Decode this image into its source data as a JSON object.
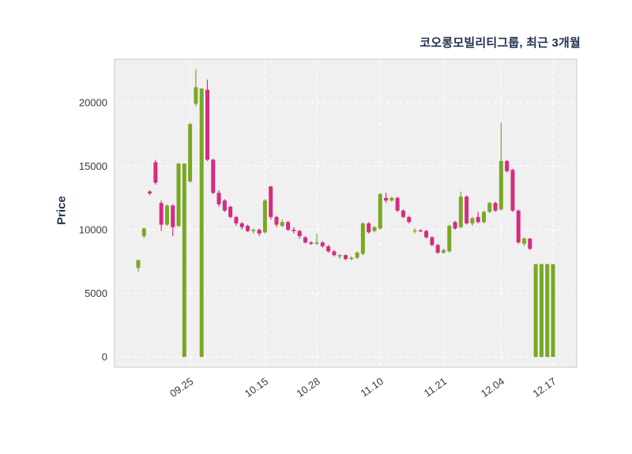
{
  "chart_data": {
    "type": "candlestick",
    "title": "코오롱모빌리티그룹, 최근 3개월",
    "ylabel": "Price",
    "ylim": [
      -800,
      23400
    ],
    "yticks": [
      0,
      5000,
      10000,
      15000,
      20000
    ],
    "xticks": [
      {
        "index": 9,
        "label": "09.25"
      },
      {
        "index": 22,
        "label": "10.15"
      },
      {
        "index": 31,
        "label": "10.28"
      },
      {
        "index": 42,
        "label": "11.10"
      },
      {
        "index": 53,
        "label": "11.21"
      },
      {
        "index": 63,
        "label": "12.04"
      },
      {
        "index": 72,
        "label": "12.17"
      }
    ],
    "grid": true,
    "legend": null,
    "colors": {
      "up": "#79a824",
      "down": "#d62b7f",
      "plot_bg": "#f0f0f0",
      "grid": "#ffffff",
      "border": "#c9c9c9",
      "tick_text": "#3b3b3b",
      "title_text": "#1f3150"
    },
    "candles_ohlc": [
      [
        7000,
        7650,
        6700,
        7600
      ],
      [
        9500,
        10150,
        9350,
        10100
      ],
      [
        13000,
        13100,
        12700,
        12850
      ],
      [
        15300,
        15500,
        13550,
        13700
      ],
      [
        12100,
        12300,
        9900,
        10400
      ],
      [
        10400,
        12000,
        10300,
        11900
      ],
      [
        11900,
        12000,
        9500,
        10200
      ],
      [
        10300,
        15250,
        10200,
        15200
      ],
      [
        0,
        15200,
        0,
        15200
      ],
      [
        13800,
        18400,
        13700,
        18300
      ],
      [
        19900,
        22600,
        19700,
        21200
      ],
      [
        0,
        21100,
        0,
        21100
      ],
      [
        21000,
        21800,
        15400,
        15500
      ],
      [
        15500,
        15600,
        12800,
        12900
      ],
      [
        12900,
        13100,
        11800,
        12000
      ],
      [
        12300,
        12400,
        11400,
        11500
      ],
      [
        11800,
        11900,
        10900,
        11000
      ],
      [
        11000,
        11100,
        10300,
        10500
      ],
      [
        10500,
        10600,
        10000,
        10200
      ],
      [
        10300,
        10400,
        9800,
        9900
      ],
      [
        9900,
        10100,
        9700,
        10000
      ],
      [
        10000,
        10100,
        9500,
        9700
      ],
      [
        9800,
        12400,
        9700,
        12300
      ],
      [
        13400,
        13450,
        10800,
        11000
      ],
      [
        11000,
        11100,
        10200,
        10400
      ],
      [
        10300,
        10800,
        10200,
        10600
      ],
      [
        10600,
        10700,
        9900,
        10000
      ],
      [
        10000,
        10200,
        9700,
        9900
      ],
      [
        9900,
        10000,
        9300,
        9500
      ],
      [
        9400,
        9500,
        8900,
        9000
      ],
      [
        9000,
        9100,
        8800,
        8900
      ],
      [
        8900,
        9700,
        8800,
        9000
      ],
      [
        9000,
        9100,
        8600,
        8700
      ],
      [
        8700,
        8800,
        8200,
        8300
      ],
      [
        8300,
        8400,
        7900,
        8000
      ],
      [
        7900,
        8100,
        7700,
        8000
      ],
      [
        8000,
        8050,
        7600,
        7700
      ],
      [
        7700,
        7900,
        7600,
        7800
      ],
      [
        7800,
        8300,
        7700,
        8200
      ],
      [
        8100,
        10600,
        8000,
        10500
      ],
      [
        10500,
        10600,
        9700,
        9800
      ],
      [
        9900,
        10300,
        9800,
        10200
      ],
      [
        10100,
        12900,
        10000,
        12800
      ],
      [
        12500,
        12900,
        12100,
        12300
      ],
      [
        12300,
        12600,
        12200,
        12500
      ],
      [
        12500,
        12600,
        11400,
        11500
      ],
      [
        11500,
        11600,
        10900,
        11000
      ],
      [
        11000,
        11100,
        10500,
        10600
      ],
      [
        9900,
        10100,
        9700,
        9950
      ],
      [
        9950,
        10050,
        9800,
        9900
      ],
      [
        9900,
        10000,
        9300,
        9400
      ],
      [
        9400,
        9500,
        8700,
        8800
      ],
      [
        8800,
        8900,
        8100,
        8200
      ],
      [
        8200,
        8500,
        8100,
        8400
      ],
      [
        8300,
        10400,
        8200,
        10300
      ],
      [
        10600,
        10700,
        10000,
        10100
      ],
      [
        10200,
        13000,
        10100,
        12600
      ],
      [
        12600,
        12700,
        10400,
        10500
      ],
      [
        10500,
        11000,
        10300,
        10900
      ],
      [
        11000,
        11400,
        10500,
        10600
      ],
      [
        10600,
        11500,
        10500,
        11400
      ],
      [
        11400,
        12200,
        11300,
        12100
      ],
      [
        12100,
        12200,
        11400,
        11500
      ],
      [
        11600,
        18400,
        11500,
        15400
      ],
      [
        15400,
        15500,
        14500,
        14600
      ],
      [
        14700,
        14800,
        11400,
        11500
      ],
      [
        11500,
        11600,
        8900,
        9000
      ],
      [
        8900,
        9400,
        8700,
        9300
      ],
      [
        9300,
        9350,
        8400,
        8500
      ],
      [
        0,
        7300,
        0,
        7300
      ],
      [
        0,
        7300,
        0,
        7300
      ],
      [
        0,
        7300,
        0,
        7300
      ],
      [
        0,
        7300,
        0,
        7300
      ]
    ]
  }
}
